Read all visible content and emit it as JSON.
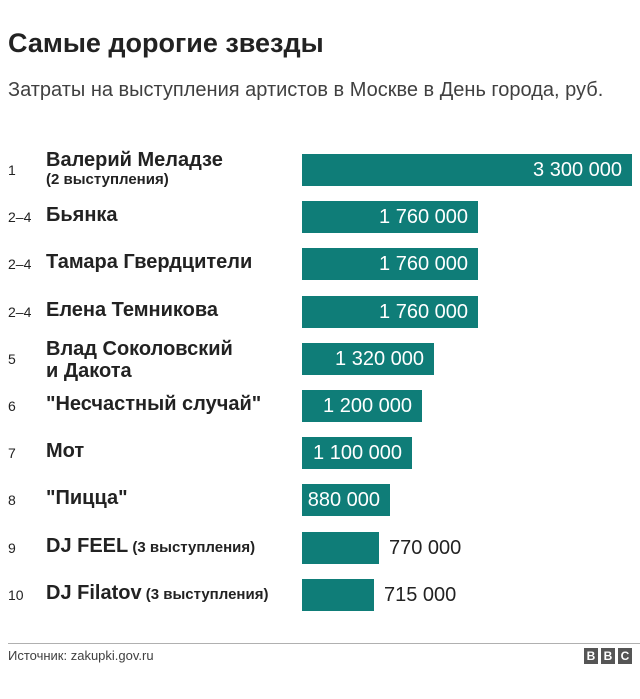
{
  "chart_data": {
    "type": "bar",
    "orientation": "horizontal",
    "title": "Самые дорогие звезды",
    "subtitle": "Затраты на выступления артистов в Москве в День города, руб.",
    "categories": [
      "Валерий Меладзе",
      "Бьянка",
      "Тамара Гвердцители",
      "Елена Темникова",
      "Влад Соколовский и Дакота",
      "\"Несчастный случай\"",
      "Мот",
      "\"Пицца\"",
      "DJ FEEL",
      "DJ Filatov"
    ],
    "ranks": [
      "1",
      "2–4",
      "2–4",
      "2–4",
      "5",
      "6",
      "7",
      "8",
      "9",
      "10"
    ],
    "notes": [
      "(2 выступления)",
      "",
      "",
      "",
      "",
      "",
      "",
      "",
      "(3 выступления)",
      "(3 выступления)"
    ],
    "values": [
      3300000,
      1760000,
      1760000,
      1760000,
      1320000,
      1200000,
      1100000,
      880000,
      770000,
      715000
    ],
    "value_labels": [
      "3 300 000",
      "1 760 000",
      "1 760 000",
      "1 760 000",
      "1 320 000",
      "1 200 000",
      "1 100 000",
      "880 000",
      "770 000",
      "715 000"
    ],
    "bar_color": "#0f7d78",
    "xlim": [
      0,
      3300000
    ],
    "grid": false
  },
  "footer": {
    "source": "Источник: zakupki.gov.ru",
    "logo_letters": [
      "B",
      "B",
      "C"
    ]
  }
}
